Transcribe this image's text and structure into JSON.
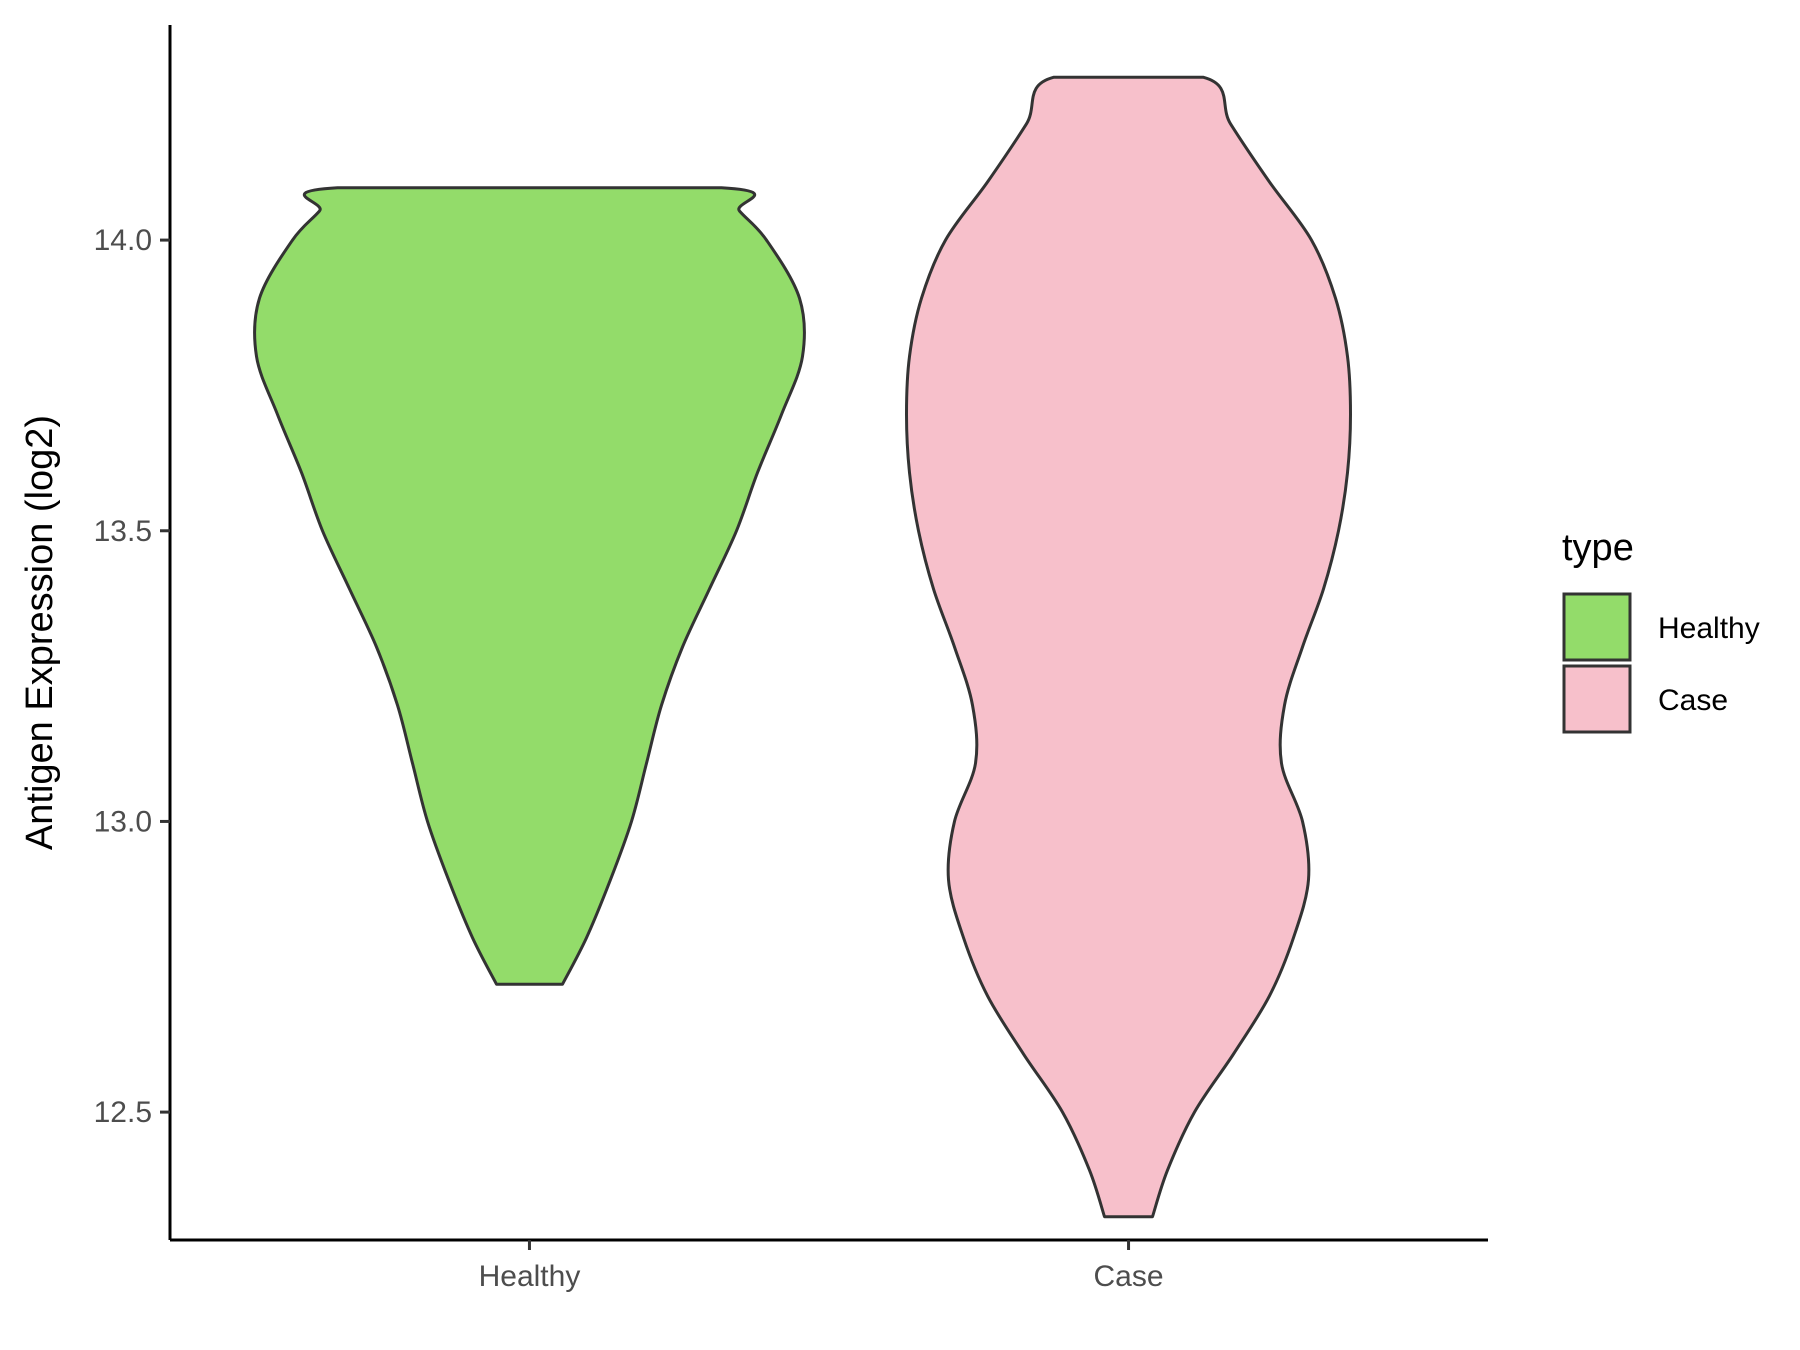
{
  "chart_data": {
    "type": "violin",
    "title": "",
    "xlabel": "",
    "ylabel": "Antigen Expression (log2)",
    "ylim": [
      12.28,
      14.37
    ],
    "yticks": [
      12.5,
      13.0,
      13.5,
      14.0
    ],
    "ytick_labels": [
      "12.5",
      "13.0",
      "13.5",
      "14.0"
    ],
    "categories": [
      "Healthy",
      "Case"
    ],
    "grid": false,
    "legend": {
      "title": "type",
      "position": "right",
      "entries": [
        {
          "label": "Healthy",
          "color": "#93dc6a"
        },
        {
          "label": "Case",
          "color": "#f7c0cb"
        }
      ]
    },
    "series": [
      {
        "category": "Healthy",
        "color": "#93dc6a",
        "min": 12.72,
        "max": 14.09,
        "density_profile": [
          [
            12.72,
            0.11
          ],
          [
            12.8,
            0.19
          ],
          [
            12.9,
            0.27
          ],
          [
            13.0,
            0.34
          ],
          [
            13.1,
            0.39
          ],
          [
            13.2,
            0.44
          ],
          [
            13.3,
            0.51
          ],
          [
            13.4,
            0.6
          ],
          [
            13.5,
            0.69
          ],
          [
            13.6,
            0.76
          ],
          [
            13.7,
            0.84
          ],
          [
            13.8,
            0.91
          ],
          [
            13.9,
            0.9
          ],
          [
            14.0,
            0.79
          ],
          [
            14.05,
            0.7
          ],
          [
            14.09,
            0.64
          ]
        ]
      },
      {
        "category": "Case",
        "color": "#f7c0cb",
        "min": 12.32,
        "max": 14.28,
        "density_profile": [
          [
            12.32,
            0.08
          ],
          [
            12.4,
            0.13
          ],
          [
            12.5,
            0.22
          ],
          [
            12.6,
            0.35
          ],
          [
            12.7,
            0.47
          ],
          [
            12.8,
            0.55
          ],
          [
            12.9,
            0.6
          ],
          [
            13.0,
            0.58
          ],
          [
            13.1,
            0.51
          ],
          [
            13.2,
            0.52
          ],
          [
            13.3,
            0.58
          ],
          [
            13.4,
            0.65
          ],
          [
            13.5,
            0.7
          ],
          [
            13.6,
            0.73
          ],
          [
            13.7,
            0.74
          ],
          [
            13.8,
            0.73
          ],
          [
            13.9,
            0.69
          ],
          [
            14.0,
            0.61
          ],
          [
            14.1,
            0.47
          ],
          [
            14.2,
            0.34
          ],
          [
            14.28,
            0.25
          ]
        ]
      }
    ]
  }
}
